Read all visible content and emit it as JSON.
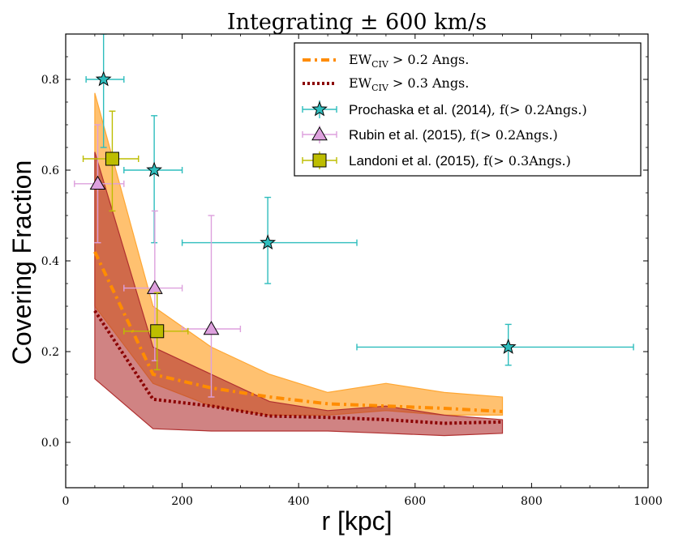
{
  "chart_data": {
    "type": "line",
    "title": "Integrating ± 600 km/s",
    "xlabel": "r [kpc]",
    "ylabel": "Covering Fraction",
    "xlim": [
      0,
      1000
    ],
    "ylim": [
      -0.1,
      0.9
    ],
    "x_ticks": [
      0,
      200,
      400,
      600,
      800,
      1000
    ],
    "y_ticks": [
      0.0,
      0.2,
      0.4,
      0.6,
      0.8
    ],
    "x_tick_labels": [
      "0",
      "200",
      "400",
      "600",
      "800",
      "1000"
    ],
    "y_tick_labels": [
      "0.0",
      "0.2",
      "0.4",
      "0.6",
      "0.8"
    ],
    "bands": [
      {
        "name": "EW_CIV > 0.2 Angs. band",
        "color": "#ffa733",
        "x": [
          50,
          150,
          250,
          350,
          450,
          550,
          650,
          750
        ],
        "upper": [
          0.77,
          0.3,
          0.21,
          0.15,
          0.11,
          0.13,
          0.11,
          0.1
        ],
        "lower": [
          0.3,
          0.13,
          0.08,
          0.06,
          0.06,
          0.07,
          0.06,
          0.06
        ]
      },
      {
        "name": "EW_CIV > 0.3 Angs. band",
        "color": "#b03030",
        "x": [
          50,
          150,
          250,
          350,
          450,
          550,
          650,
          750
        ],
        "upper": [
          0.64,
          0.21,
          0.15,
          0.09,
          0.07,
          0.08,
          0.06,
          0.05
        ],
        "lower": [
          0.14,
          0.03,
          0.025,
          0.025,
          0.025,
          0.02,
          0.015,
          0.02
        ]
      }
    ],
    "series": [
      {
        "name": "EW_CIV > 0.2 Angs.",
        "style": "dash-dot",
        "color": "#ff8c00",
        "x": [
          50,
          150,
          250,
          350,
          450,
          550,
          650,
          750
        ],
        "values": [
          0.42,
          0.15,
          0.12,
          0.1,
          0.085,
          0.08,
          0.075,
          0.068
        ]
      },
      {
        "name": "EW_CIV > 0.3 Angs.",
        "style": "dotted",
        "color": "#8b0000",
        "x": [
          50,
          150,
          250,
          350,
          450,
          550,
          650,
          750
        ],
        "values": [
          0.29,
          0.095,
          0.08,
          0.058,
          0.055,
          0.05,
          0.042,
          0.045
        ]
      }
    ],
    "observations": [
      {
        "name": "Prochaska et al. (2014)",
        "marker": "star",
        "color": "#2ebdbd",
        "points": [
          {
            "x": 65,
            "y": 0.8,
            "xerr": [
              35,
              100
            ],
            "yerr": [
              0.65,
              0.9
            ]
          },
          {
            "x": 152,
            "y": 0.6,
            "xerr": [
              100,
              200
            ],
            "yerr": [
              0.44,
              0.72
            ]
          },
          {
            "x": 347,
            "y": 0.44,
            "xerr": [
              200,
              500
            ],
            "yerr": [
              0.35,
              0.54
            ]
          },
          {
            "x": 760,
            "y": 0.21,
            "xerr": [
              500,
              975
            ],
            "yerr": [
              0.17,
              0.26
            ]
          }
        ]
      },
      {
        "name": "Rubin et al. (2015)",
        "marker": "triangle",
        "color": "#dda0dd",
        "points": [
          {
            "x": 55,
            "y": 0.57,
            "xerr": [
              15,
              100
            ],
            "yerr": [
              0.44,
              0.7
            ]
          },
          {
            "x": 153,
            "y": 0.34,
            "xerr": [
              100,
              200
            ],
            "yerr": [
              0.18,
              0.51
            ]
          },
          {
            "x": 250,
            "y": 0.25,
            "xerr": [
              200,
              300
            ],
            "yerr": [
              0.1,
              0.5
            ]
          }
        ]
      },
      {
        "name": "Landoni et al. (2015)",
        "marker": "square",
        "color": "#bdbd00",
        "points": [
          {
            "x": 80,
            "y": 0.625,
            "xerr": [
              30,
              125
            ],
            "yerr": [
              0.51,
              0.73
            ]
          },
          {
            "x": 157,
            "y": 0.245,
            "xerr": [
              100,
              210
            ],
            "yerr": [
              0.16,
              0.33
            ]
          }
        ]
      }
    ],
    "legend": {
      "placement": "top-right",
      "entries": [
        {
          "main": "EW",
          "sub": "CIV",
          "suffix": " > 0.2 Angs."
        },
        {
          "main": "EW",
          "sub": "CIV",
          "suffix": " > 0.3 Angs."
        },
        {
          "main": "Prochaska et al. (2014)",
          "suffix": ", f(> 0.2Angs.)"
        },
        {
          "main": "Rubin et al. (2015)",
          "suffix": ", f(> 0.2Angs.)"
        },
        {
          "main": "Landoni et al. (2015)",
          "suffix": ", f(> 0.3Angs.)"
        }
      ]
    }
  }
}
